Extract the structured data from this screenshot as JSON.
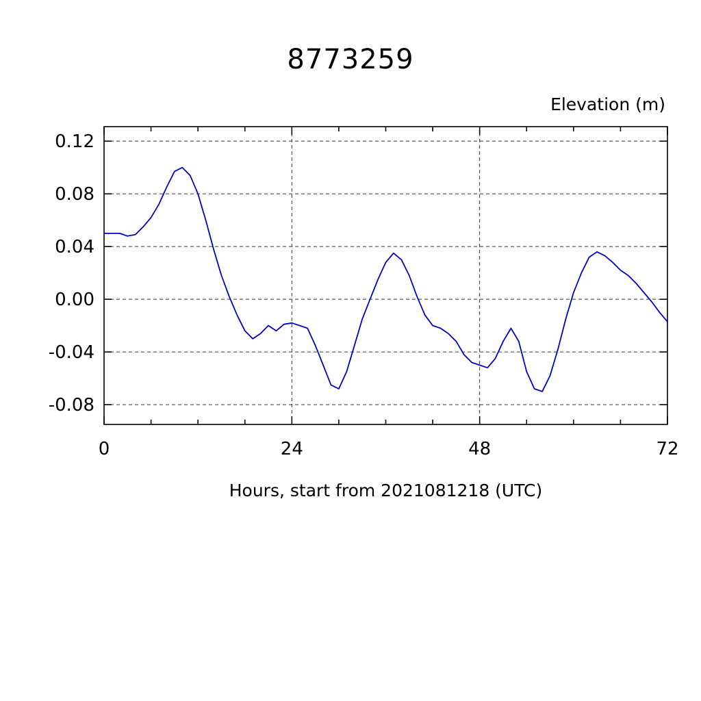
{
  "chart_data": {
    "type": "line",
    "title": "8773259",
    "ylabel": "Elevation (m)",
    "xlabel": "Hours, start from 2021081218 (UTC)",
    "xlim": [
      0,
      72
    ],
    "ylim": [
      -0.095,
      0.131
    ],
    "xticks": [
      0,
      24,
      48,
      72
    ],
    "xtick_labels": [
      "0",
      "24",
      "48",
      "72"
    ],
    "x_minor_step": 6,
    "yticks": [
      -0.08,
      -0.04,
      0,
      0.04,
      0.08,
      0.12
    ],
    "ytick_labels": [
      "-0.08",
      "-0.04",
      "0.00",
      "0.04",
      "0.08",
      "0.12"
    ],
    "grid": true,
    "legend": "none",
    "line_color": "#0000cd",
    "series": [
      {
        "name": "elevation",
        "x": [
          0,
          1,
          2,
          3,
          4,
          5,
          6,
          7,
          8,
          9,
          10,
          11,
          12,
          13,
          14,
          15,
          16,
          17,
          18,
          19,
          20,
          21,
          22,
          23,
          24,
          25,
          26,
          27,
          28,
          29,
          30,
          31,
          32,
          33,
          34,
          35,
          36,
          37,
          38,
          39,
          40,
          41,
          42,
          43,
          44,
          45,
          46,
          47,
          48,
          49,
          50,
          51,
          52,
          53,
          54,
          55,
          56,
          57,
          58,
          59,
          60,
          61,
          62,
          63,
          64,
          65,
          66,
          67,
          68,
          69,
          70,
          71,
          72
        ],
        "y": [
          0.05,
          0.05,
          0.05,
          0.048,
          0.049,
          0.055,
          0.062,
          0.072,
          0.085,
          0.097,
          0.1,
          0.094,
          0.08,
          0.06,
          0.038,
          0.018,
          0.002,
          -0.012,
          -0.024,
          -0.03,
          -0.026,
          -0.02,
          -0.024,
          -0.019,
          -0.018,
          -0.02,
          -0.022,
          -0.035,
          -0.05,
          -0.065,
          -0.068,
          -0.055,
          -0.035,
          -0.015,
          0.0,
          0.015,
          0.028,
          0.035,
          0.03,
          0.018,
          0.002,
          -0.012,
          -0.02,
          -0.022,
          -0.026,
          -0.032,
          -0.042,
          -0.048,
          -0.05,
          -0.052,
          -0.045,
          -0.032,
          -0.022,
          -0.032,
          -0.055,
          -0.068,
          -0.07,
          -0.058,
          -0.038,
          -0.015,
          0.005,
          0.02,
          0.032,
          0.036,
          0.033,
          0.028,
          0.022,
          0.018,
          0.012,
          0.005,
          -0.002,
          -0.01,
          -0.017
        ]
      }
    ]
  }
}
